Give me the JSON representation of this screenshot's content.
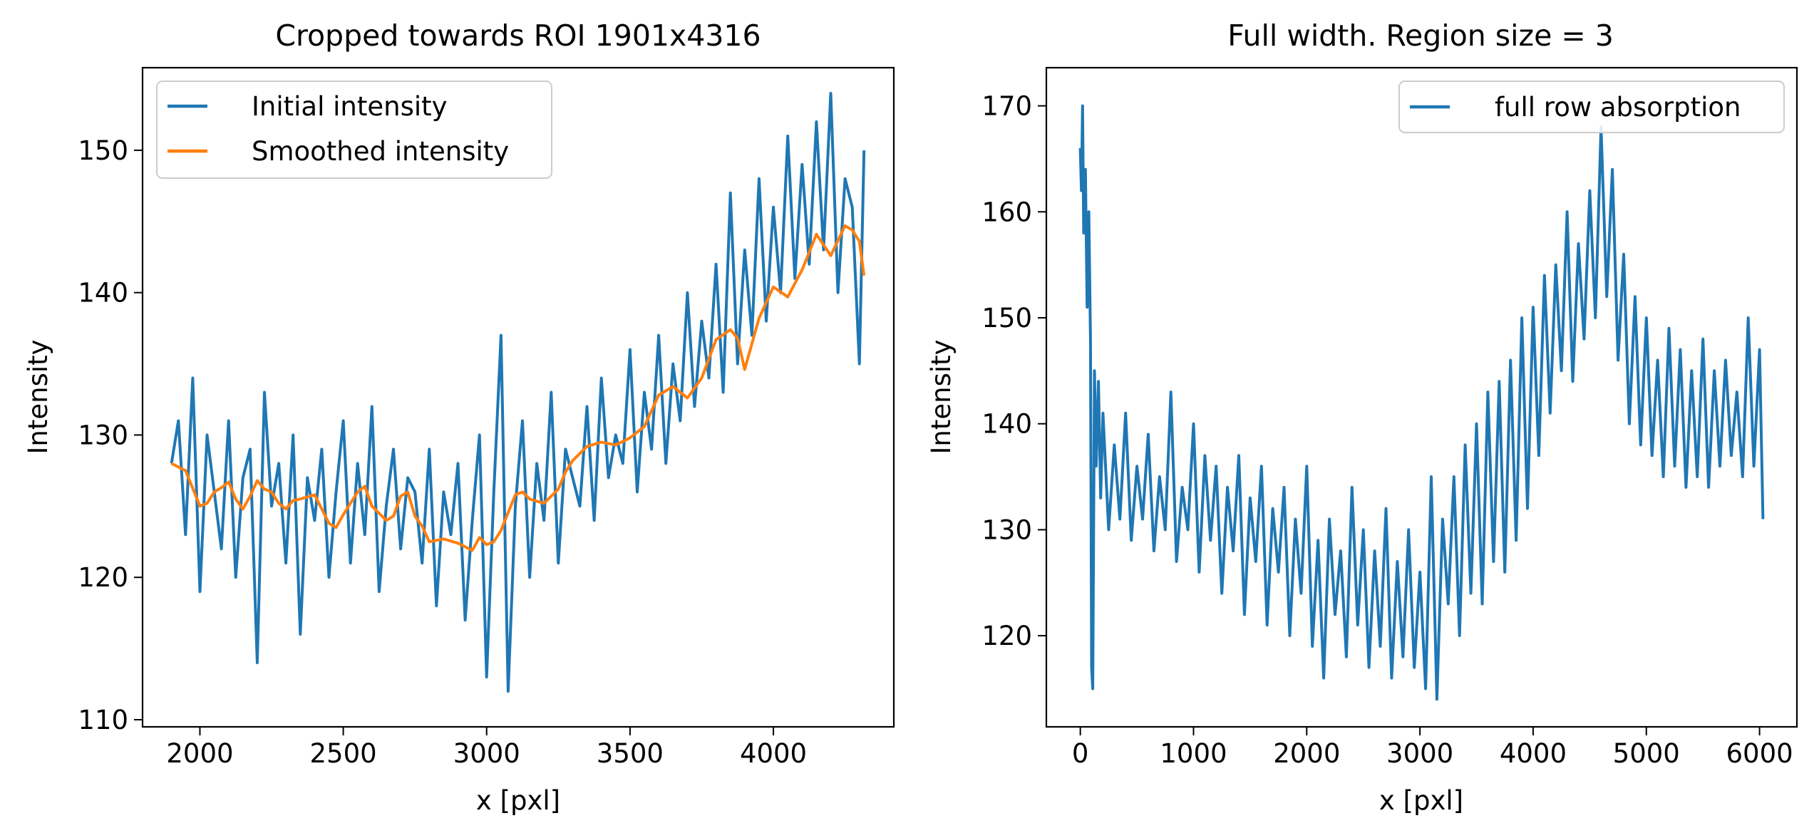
{
  "chart_data": [
    {
      "type": "line",
      "title": "Cropped towards ROI 1901x4316",
      "xlabel": "x [pxl]",
      "ylabel": "Intensity",
      "xlim": [
        1800,
        4420
      ],
      "ylim": [
        109.5,
        155.8
      ],
      "xticks": [
        2000,
        2500,
        3000,
        3500,
        4000
      ],
      "yticks": [
        110,
        120,
        130,
        140,
        150
      ],
      "grid": false,
      "legend": "top-left",
      "series": [
        {
          "name": "Initial intensity",
          "color": "#1f77b4",
          "x": [
            1901,
            1925,
            1950,
            1975,
            2000,
            2025,
            2050,
            2075,
            2100,
            2125,
            2150,
            2175,
            2200,
            2225,
            2250,
            2275,
            2300,
            2325,
            2350,
            2375,
            2400,
            2425,
            2450,
            2475,
            2500,
            2525,
            2550,
            2575,
            2600,
            2625,
            2650,
            2675,
            2700,
            2725,
            2750,
            2775,
            2800,
            2825,
            2850,
            2875,
            2900,
            2925,
            2950,
            2975,
            3000,
            3025,
            3050,
            3075,
            3100,
            3125,
            3150,
            3175,
            3200,
            3225,
            3250,
            3275,
            3300,
            3325,
            3350,
            3375,
            3400,
            3425,
            3450,
            3475,
            3500,
            3525,
            3550,
            3575,
            3600,
            3625,
            3650,
            3675,
            3700,
            3725,
            3750,
            3775,
            3800,
            3825,
            3850,
            3875,
            3900,
            3925,
            3950,
            3975,
            4000,
            4025,
            4050,
            4075,
            4100,
            4125,
            4150,
            4175,
            4200,
            4225,
            4250,
            4275,
            4300,
            4316
          ],
          "y": [
            128,
            131,
            123,
            134,
            119,
            130,
            126,
            122,
            131,
            120,
            127,
            129,
            114,
            133,
            125,
            128,
            121,
            130,
            116,
            127,
            124,
            129,
            120,
            126,
            131,
            121,
            128,
            123,
            132,
            119,
            125,
            129,
            122,
            127,
            126,
            121,
            129,
            118,
            126,
            123,
            128,
            117,
            124,
            130,
            113,
            126,
            137,
            112,
            125,
            131,
            120,
            128,
            124,
            133,
            121,
            129,
            127,
            125,
            132,
            124,
            134,
            127,
            130,
            128,
            136,
            126,
            133,
            129,
            137,
            128,
            135,
            131,
            140,
            132,
            138,
            134,
            142,
            133,
            147,
            135,
            143,
            137,
            148,
            138,
            146,
            140,
            151,
            141,
            149,
            142,
            152,
            143,
            154,
            140,
            148,
            146,
            135,
            150
          ]
        },
        {
          "name": "Smoothed intensity",
          "color": "#ff7f0e",
          "x": [
            1901,
            1950,
            2000,
            2025,
            2050,
            2075,
            2100,
            2125,
            2150,
            2175,
            2200,
            2225,
            2250,
            2275,
            2300,
            2325,
            2350,
            2400,
            2450,
            2475,
            2500,
            2550,
            2575,
            2600,
            2650,
            2675,
            2700,
            2725,
            2750,
            2775,
            2800,
            2850,
            2900,
            2950,
            2975,
            3000,
            3025,
            3050,
            3100,
            3125,
            3150,
            3200,
            3250,
            3275,
            3300,
            3350,
            3400,
            3450,
            3500,
            3550,
            3600,
            3650,
            3700,
            3750,
            3800,
            3850,
            3875,
            3900,
            3950,
            4000,
            4050,
            4100,
            4150,
            4200,
            4250,
            4275,
            4300,
            4316
          ],
          "y": [
            128,
            127.5,
            125,
            125.2,
            126,
            126.3,
            126.7,
            125.5,
            124.8,
            125.7,
            126.8,
            126.2,
            126,
            125.2,
            124.8,
            125.4,
            125.5,
            125.8,
            123.8,
            123.5,
            124.4,
            126,
            126.4,
            125,
            124,
            124.3,
            125.7,
            126,
            124.3,
            123.6,
            122.5,
            122.7,
            122.4,
            121.9,
            122.8,
            122.3,
            122.5,
            123.3,
            125.8,
            126,
            125.5,
            125.2,
            126.2,
            127.4,
            128.2,
            129.2,
            129.5,
            129.3,
            129.8,
            130.6,
            132.8,
            133.4,
            132.6,
            134,
            136.7,
            137.4,
            136.8,
            134.6,
            138.2,
            140.4,
            139.7,
            141.6,
            144.1,
            142.6,
            144.7,
            144.4,
            143.6,
            141.2
          ]
        }
      ]
    },
    {
      "type": "line",
      "title": "Full width. Region size = 3",
      "xlabel": "x [pxl]",
      "ylabel": "Intensity",
      "xlim": [
        -300,
        6330
      ],
      "ylim": [
        111.4,
        173.6
      ],
      "xticks": [
        0,
        1000,
        2000,
        3000,
        4000,
        5000,
        6000
      ],
      "yticks": [
        120,
        130,
        140,
        150,
        160,
        170
      ],
      "grid": false,
      "legend": "top-right",
      "series": [
        {
          "name": "full row absorption",
          "color": "#1f77b4",
          "x": [
            0,
            10,
            20,
            30,
            45,
            60,
            75,
            90,
            100,
            110,
            125,
            140,
            160,
            180,
            200,
            250,
            300,
            350,
            400,
            450,
            500,
            550,
            600,
            650,
            700,
            750,
            800,
            850,
            900,
            950,
            1000,
            1050,
            1100,
            1150,
            1200,
            1250,
            1300,
            1350,
            1400,
            1450,
            1500,
            1550,
            1600,
            1650,
            1700,
            1750,
            1800,
            1850,
            1900,
            1950,
            2000,
            2050,
            2100,
            2150,
            2200,
            2250,
            2300,
            2350,
            2400,
            2450,
            2500,
            2550,
            2600,
            2650,
            2700,
            2750,
            2800,
            2850,
            2900,
            2950,
            3000,
            3050,
            3100,
            3150,
            3200,
            3250,
            3300,
            3350,
            3400,
            3450,
            3500,
            3550,
            3600,
            3650,
            3700,
            3750,
            3800,
            3850,
            3900,
            3950,
            4000,
            4050,
            4100,
            4150,
            4200,
            4250,
            4300,
            4350,
            4400,
            4450,
            4500,
            4550,
            4600,
            4650,
            4700,
            4750,
            4800,
            4850,
            4900,
            4950,
            5000,
            5050,
            5100,
            5150,
            5200,
            5250,
            5300,
            5350,
            5400,
            5450,
            5500,
            5550,
            5600,
            5650,
            5700,
            5750,
            5800,
            5850,
            5900,
            5950,
            6000,
            6030
          ],
          "y": [
            166,
            162,
            170,
            158,
            164,
            151,
            160,
            148,
            117,
            115,
            145,
            136,
            144,
            133,
            141,
            130,
            138,
            131,
            141,
            129,
            136,
            131,
            139,
            128,
            135,
            130,
            143,
            127,
            134,
            130,
            140,
            126,
            137,
            129,
            136,
            124,
            134,
            128,
            137,
            122,
            133,
            127,
            136,
            121,
            132,
            126,
            134,
            120,
            131,
            124,
            136,
            119,
            129,
            116,
            131,
            122,
            128,
            118,
            134,
            121,
            130,
            117,
            128,
            119,
            132,
            116,
            127,
            118,
            130,
            117,
            126,
            115,
            135,
            114,
            131,
            123,
            135,
            120,
            138,
            124,
            140,
            123,
            143,
            127,
            144,
            126,
            146,
            129,
            150,
            132,
            151,
            137,
            154,
            141,
            155,
            145,
            160,
            144,
            157,
            148,
            162,
            150,
            168,
            152,
            164,
            146,
            156,
            140,
            152,
            138,
            150,
            137,
            146,
            135,
            149,
            136,
            147,
            134,
            145,
            135,
            148,
            134,
            145,
            136,
            146,
            137,
            143,
            135,
            150,
            136,
            147,
            131
          ]
        }
      ]
    }
  ]
}
